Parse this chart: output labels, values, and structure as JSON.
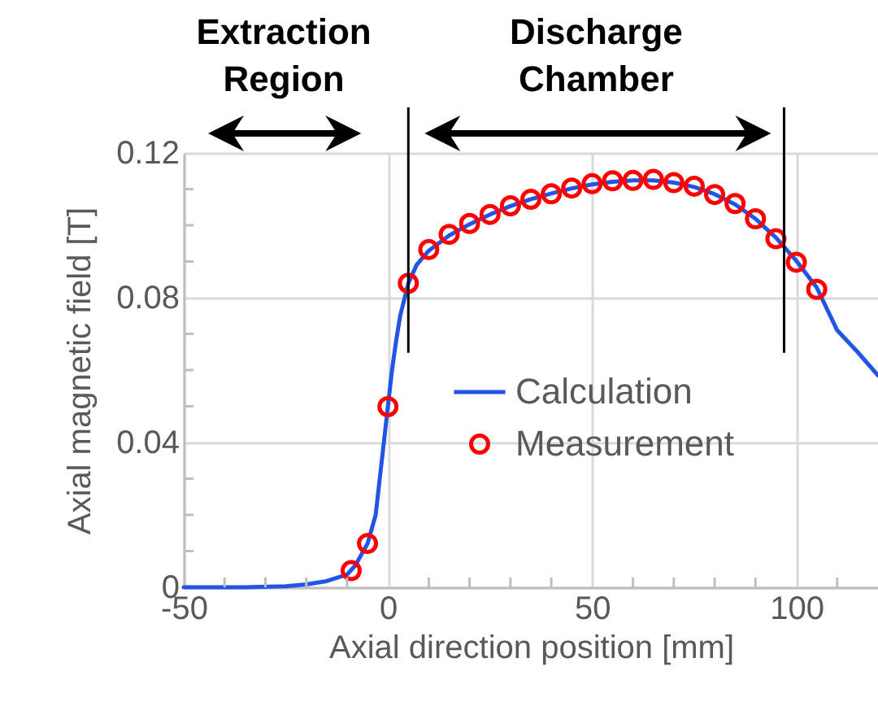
{
  "chart_data": {
    "type": "line",
    "xlabel": "Axial direction position [mm]",
    "ylabel": "Axial magnetic field [T]",
    "xlim": [
      -50,
      120
    ],
    "ylim": [
      0,
      0.12
    ],
    "xticks": [
      -50,
      {
        "value": -40,
        "label": null
      },
      {
        "value": -30,
        "label": null
      },
      {
        "value": -20,
        "label": null
      },
      {
        "value": -10,
        "label": null
      },
      0,
      {
        "value": 10,
        "label": null
      },
      {
        "value": 20,
        "label": null
      },
      {
        "value": 30,
        "label": null
      },
      {
        "value": 40,
        "label": null
      },
      50,
      {
        "value": 60,
        "label": null
      },
      {
        "value": 70,
        "label": null
      },
      {
        "value": 80,
        "label": null
      },
      {
        "value": 90,
        "label": null
      },
      100,
      {
        "value": 110,
        "label": null
      }
    ],
    "yticks": [
      0,
      {
        "value": 0.01,
        "label": null
      },
      {
        "value": 0.02,
        "label": null
      },
      {
        "value": 0.03,
        "label": null
      },
      0.04,
      {
        "value": 0.05,
        "label": null
      },
      {
        "value": 0.06,
        "label": null
      },
      {
        "value": 0.07,
        "label": null
      },
      0.08,
      {
        "value": 0.09,
        "label": null
      },
      {
        "value": 0.1,
        "label": null
      },
      {
        "value": 0.11,
        "label": null
      },
      0.12
    ],
    "grid": true,
    "legend": "bottom right",
    "line_style": "solid",
    "series": [
      {
        "name": "Calculation",
        "color": "#2255e6",
        "x": [
          -50,
          -35,
          -25,
          -20,
          -15,
          -10,
          -8,
          -5,
          -3,
          -2,
          -1,
          0,
          1,
          2,
          3,
          5,
          7,
          10,
          15,
          20,
          25,
          30,
          35,
          40,
          45,
          50,
          55,
          60,
          65,
          70,
          75,
          80,
          85,
          90,
          95,
          100,
          105,
          110,
          115,
          120
        ],
        "values": [
          0,
          0,
          0.0003,
          0.0008,
          0.0017,
          0.0035,
          0.006,
          0.012,
          0.02,
          0.03,
          0.04,
          0.05,
          0.06,
          0.068,
          0.075,
          0.084,
          0.089,
          0.093,
          0.0972,
          0.1003,
          0.103,
          0.1053,
          0.1072,
          0.1088,
          0.1102,
          0.1113,
          0.112,
          0.1124,
          0.1124,
          0.1118,
          0.1106,
          0.1086,
          0.1058,
          0.1018,
          0.0966,
          0.0902,
          0.0828,
          0.071,
          0.065,
          0.0585
        ]
      },
      {
        "name": "Measurement",
        "type": "scatter",
        "marker": "circle",
        "color": "#ff0000",
        "x": [
          -9,
          -5,
          0,
          5,
          10,
          15,
          20,
          25,
          30,
          35,
          40,
          45,
          50,
          55,
          60,
          65,
          70,
          75,
          80,
          85,
          90,
          95,
          100,
          105
        ],
        "values": [
          0.0046,
          0.0121,
          0.0499,
          0.084,
          0.0933,
          0.0975,
          0.1005,
          0.103,
          0.1054,
          0.1072,
          0.1087,
          0.1103,
          0.1115,
          0.1123,
          0.1124,
          0.1127,
          0.1118,
          0.1108,
          0.1085,
          0.106,
          0.1018,
          0.0963,
          0.0898,
          0.0823
        ]
      }
    ],
    "ref_lines": [
      {
        "axis": "x",
        "value": 5,
        "color": "#000000"
      },
      {
        "axis": "x",
        "value": 97,
        "color": "#000000"
      }
    ],
    "annotations": [
      "Extraction Region",
      "Discharge Chamber"
    ]
  }
}
